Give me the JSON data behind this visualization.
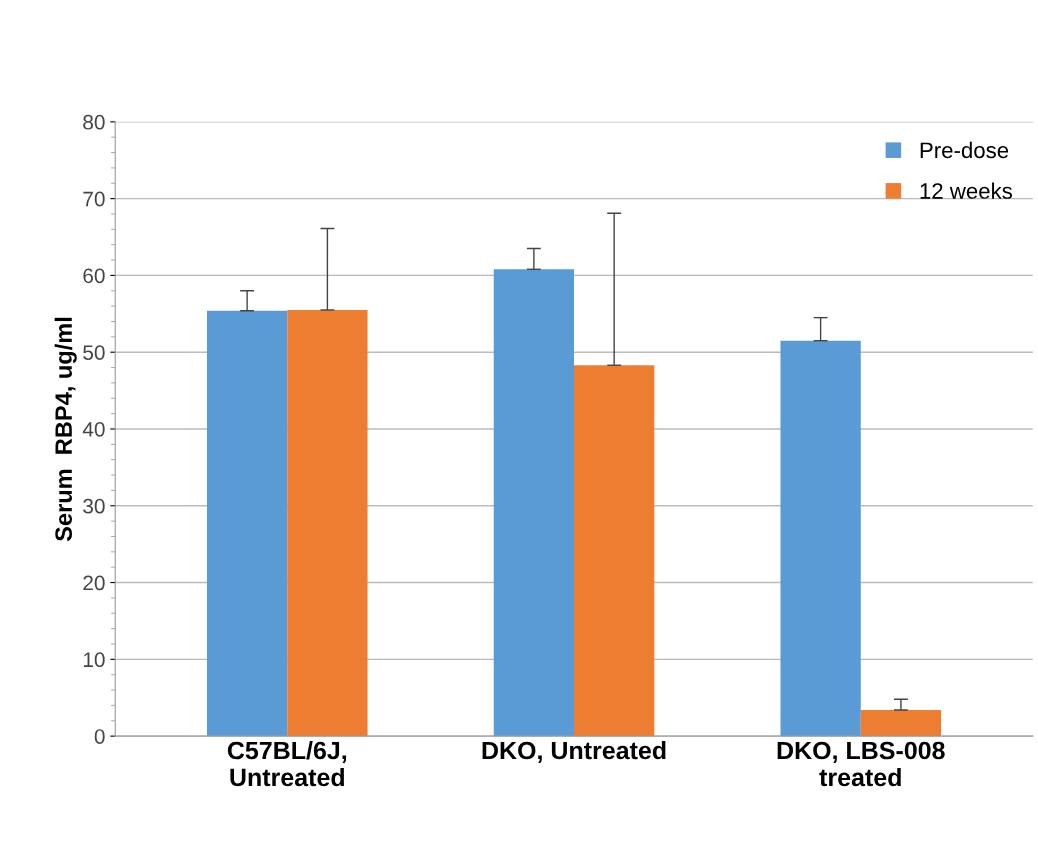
{
  "chart_data": {
    "type": "bar",
    "ylabel": "Serum  RBP4, ug/ml",
    "categories": [
      "C57BL/6J,\nUntreated",
      "DKO, Untreated",
      "DKO, LBS-008\ntreated"
    ],
    "series": [
      {
        "name": "Pre-dose",
        "color": "#5b9bd5",
        "values": [
          55.4,
          60.8,
          51.5
        ],
        "errors": [
          [
            55.4,
            58.0
          ],
          [
            60.8,
            63.5
          ],
          [
            51.5,
            54.5
          ]
        ]
      },
      {
        "name": "12 weeks",
        "color": "#ed7d31",
        "values": [
          55.5,
          48.3,
          3.4
        ],
        "errors": [
          [
            55.5,
            66.1
          ],
          [
            48.3,
            68.1
          ],
          [
            3.4,
            4.8
          ]
        ]
      }
    ],
    "ylim": [
      0,
      80
    ],
    "yticks": [
      0,
      10,
      20,
      30,
      40,
      50,
      60,
      70,
      80
    ],
    "grid": "y",
    "legend": "top right"
  }
}
